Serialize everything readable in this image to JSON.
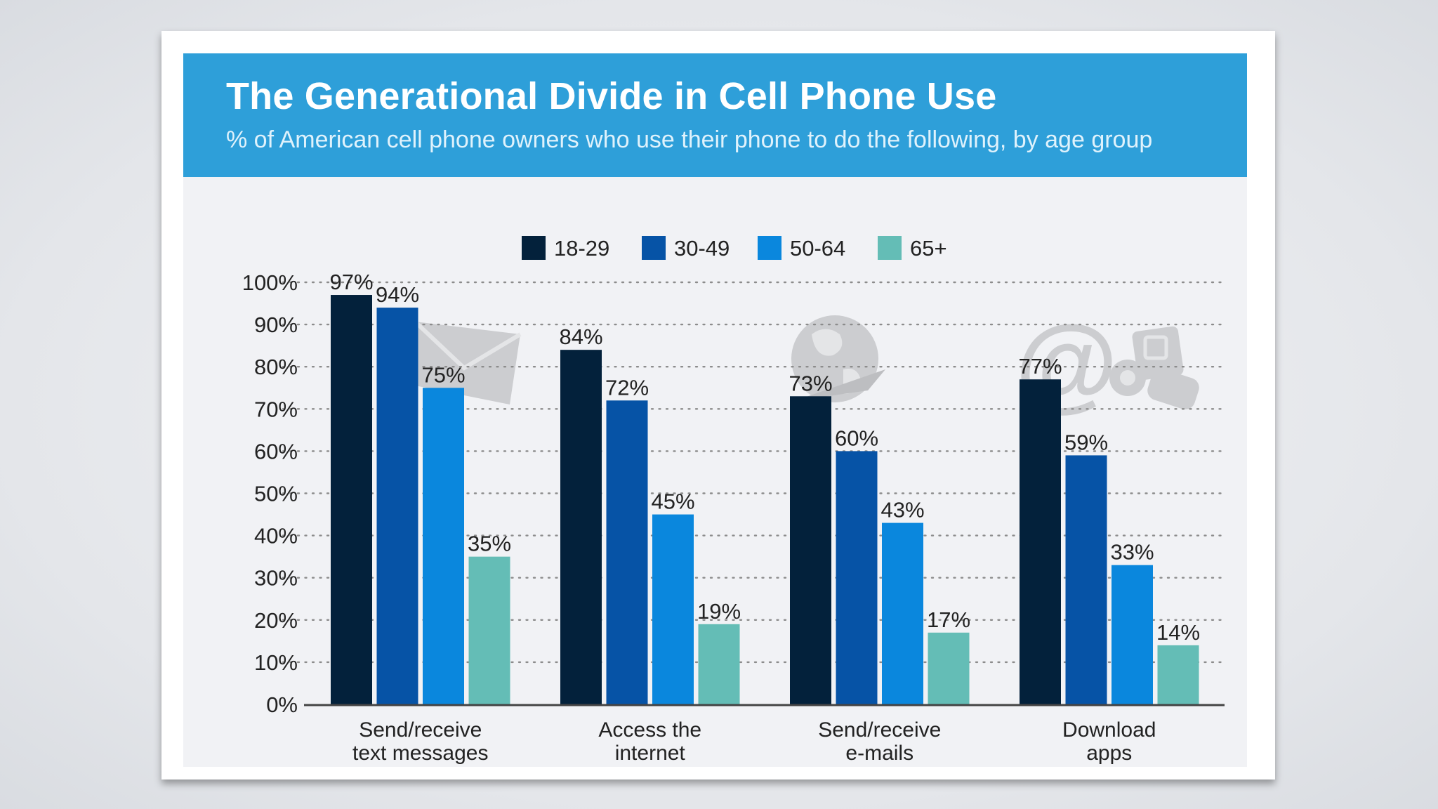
{
  "header": {
    "title": "The Generational Divide in Cell Phone Use",
    "subtitle": "% of American cell phone owners who use their phone to do the following, by age group"
  },
  "colors": {
    "header_bg": "#2e9fd9",
    "series": [
      "#03213b",
      "#0653a6",
      "#0a87dd",
      "#64bdb6"
    ]
  },
  "icons": [
    "envelope-icon",
    "globe-plane-icon",
    "at-sign-icon",
    "apps-icon"
  ],
  "chart_data": {
    "type": "bar",
    "categories": [
      [
        "Send/receive",
        "text messages"
      ],
      [
        "Access the",
        "internet"
      ],
      [
        "Send/receive",
        "e-mails"
      ],
      [
        "Download",
        "apps"
      ]
    ],
    "series": [
      {
        "name": "18-29",
        "values": [
          97,
          84,
          73,
          77
        ]
      },
      {
        "name": "30-49",
        "values": [
          94,
          72,
          60,
          59
        ]
      },
      {
        "name": "50-64",
        "values": [
          75,
          45,
          43,
          33
        ]
      },
      {
        "name": "65+",
        "values": [
          35,
          19,
          17,
          14
        ]
      }
    ],
    "ylim": [
      0,
      100
    ],
    "yticks": [
      "0%",
      "10%",
      "20%",
      "30%",
      "40%",
      "50%",
      "60%",
      "70%",
      "80%",
      "90%",
      "100%"
    ],
    "value_suffix": "%",
    "legend_position": "top-center",
    "grid": true
  }
}
